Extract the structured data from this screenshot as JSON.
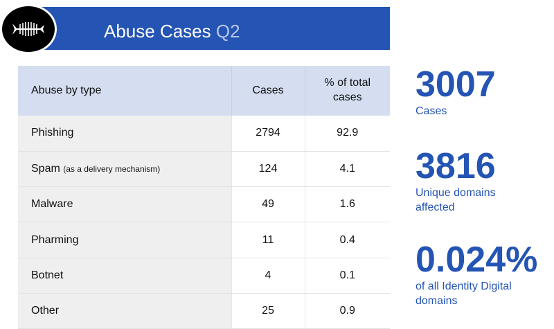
{
  "header": {
    "title": "Abuse Cases",
    "quarter": "Q2",
    "logo_icon": "fish-skeleton-icon"
  },
  "table": {
    "columns": [
      "Abuse by type",
      "Cases",
      "% of total cases"
    ],
    "rows": [
      {
        "type": "Phishing",
        "note": "",
        "cases": "2794",
        "pct": "92.9"
      },
      {
        "type": "Spam",
        "note": "(as a delivery mechanism)",
        "cases": "124",
        "pct": "4.1"
      },
      {
        "type": "Malware",
        "note": "",
        "cases": "49",
        "pct": "1.6"
      },
      {
        "type": "Pharming",
        "note": "",
        "cases": "11",
        "pct": "0.4"
      },
      {
        "type": "Botnet",
        "note": "",
        "cases": "4",
        "pct": "0.1"
      },
      {
        "type": "Other",
        "note": "",
        "cases": "25",
        "pct": "0.9"
      }
    ]
  },
  "stats": [
    {
      "value": "3007",
      "label": "Cases"
    },
    {
      "value": "3816",
      "label": "Unique domains affected"
    },
    {
      "value": "0.024%",
      "label": "of all Identity Digital domains"
    }
  ],
  "colors": {
    "brand_blue": "#2454b4",
    "header_row": "#d5def0",
    "first_col": "#efefef"
  }
}
